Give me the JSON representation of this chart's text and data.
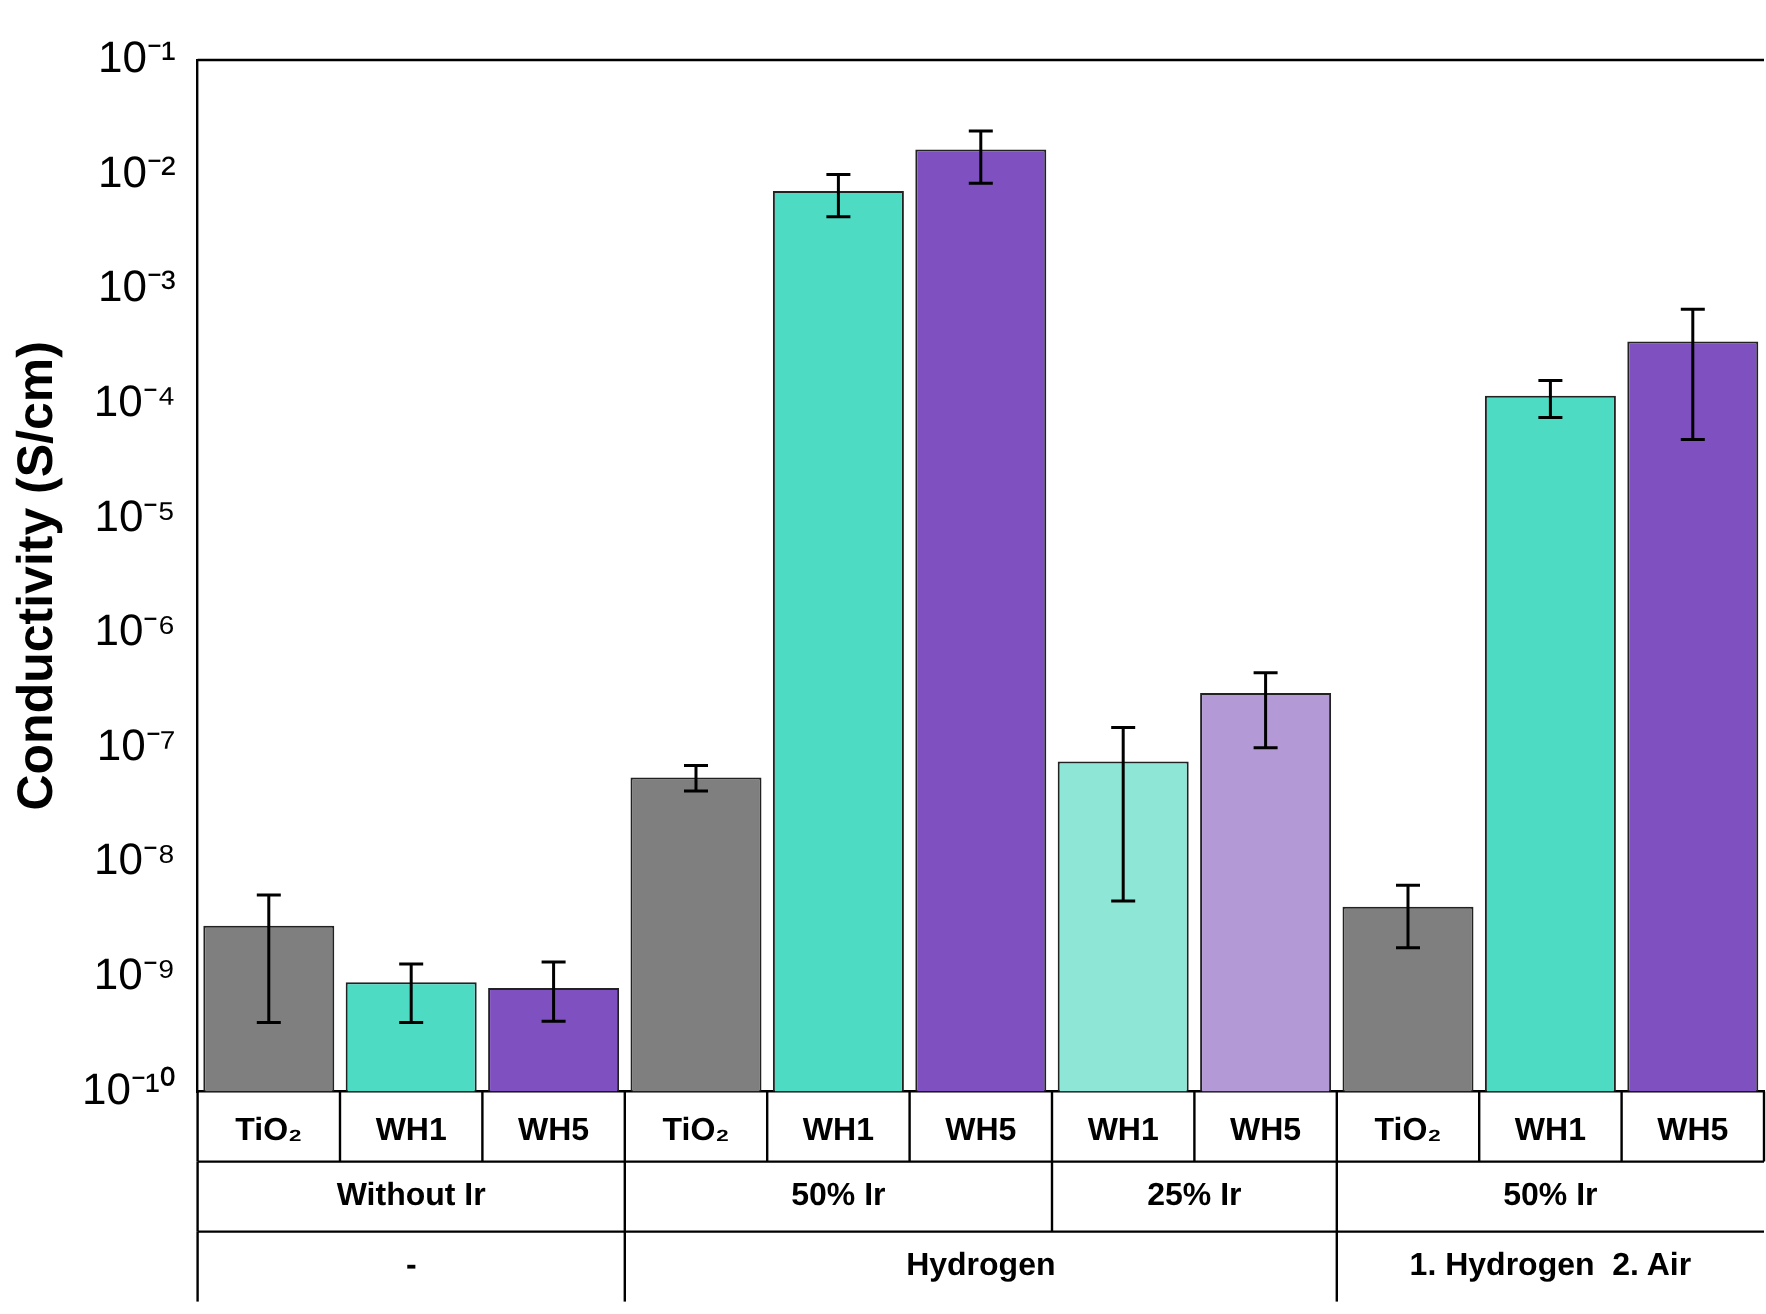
{
  "chart_data": {
    "type": "bar",
    "ylabel": "Conductivity (S/cm)",
    "categories": [
      "TiO₂",
      "WH1",
      "WH5",
      "TiO₂",
      "WH1",
      "WH5",
      "WH1",
      "WH5",
      "TiO₂",
      "WH1",
      "WH5"
    ],
    "values": [
      2.8e-09,
      9e-10,
      8e-10,
      5.5e-08,
      0.0072,
      0.0166,
      7.6e-08,
      3e-07,
      4.1e-09,
      0.000118,
      0.00035
    ],
    "colors": [
      "#7f7f7f",
      "#4ddbc4",
      "#7e50c0",
      "#7f7f7f",
      "#4ddbc4",
      "#7e50c0",
      "#8ee6d6",
      "#b39ad6",
      "#7f7f7f",
      "#4ddbc4",
      "#7e50c0"
    ],
    "errors": [
      [
        4e-10,
        5.2e-09
      ],
      [
        4e-10,
        1.3e-09
      ],
      [
        4.1e-10,
        1.35e-09
      ],
      [
        4.2e-08,
        7e-08
      ],
      [
        0.0043,
        0.01
      ],
      [
        0.0084,
        0.024
      ],
      [
        4.6e-09,
        1.5e-07
      ],
      [
        1e-07,
        4.5e-07
      ],
      [
        1.8e-09,
        6.3e-09
      ],
      [
        7.6e-05,
        0.00016
      ],
      [
        4.9e-05,
        0.00067
      ]
    ],
    "log": true,
    "ylim": [
      1e-10,
      0.1
    ],
    "yticks": [
      {
        "value": 1e-10,
        "label": "10⁻¹⁰"
      },
      {
        "value": 1e-09,
        "label": "10⁻⁹"
      },
      {
        "value": 1e-08,
        "label": "10⁻⁸"
      },
      {
        "value": 1e-07,
        "label": "10⁻⁷"
      },
      {
        "value": 1e-06,
        "label": "10⁻⁶"
      },
      {
        "value": 1e-05,
        "label": "10⁻⁵"
      },
      {
        "value": 0.0001,
        "label": "10⁻⁴"
      },
      {
        "value": 0.001,
        "label": "10⁻³"
      },
      {
        "value": 0.01,
        "label": "10⁻²"
      },
      {
        "value": 0.1,
        "label": "10⁻¹"
      }
    ],
    "grid": false,
    "legend": false,
    "annotations": [
      "Without Ir",
      "50% Ir",
      "25% Ir",
      "50% Ir",
      "-",
      "Hydrogen",
      "1. Hydrogen  2. Air"
    ]
  }
}
